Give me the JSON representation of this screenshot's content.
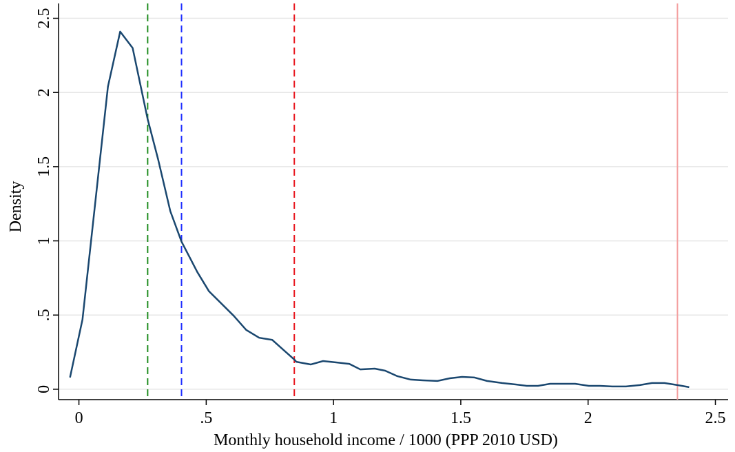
{
  "chart_data": {
    "type": "line",
    "x_label": "Monthly household income / 1000 (PPP 2010 USD)",
    "y_label": "Density",
    "xlim": [
      -0.08,
      2.55
    ],
    "ylim": [
      -0.07,
      2.6
    ],
    "xticks": [
      0,
      {
        "value": 0.5,
        "label": ".5"
      },
      1,
      1.5,
      2,
      2.5
    ],
    "yticks": [
      0,
      {
        "value": 0.5,
        "label": ".5"
      },
      1,
      1.5,
      2,
      2.5
    ],
    "grid": true,
    "series": [
      {
        "color": "#1a476f",
        "x": [
          -0.035,
          0.014,
          0.114,
          0.162,
          0.211,
          0.27,
          0.311,
          0.359,
          0.403,
          0.465,
          0.511,
          0.608,
          0.657,
          0.708,
          0.759,
          0.846,
          0.854,
          0.911,
          0.959,
          1.014,
          1.062,
          1.105,
          1.162,
          1.203,
          1.251,
          1.303,
          1.351,
          1.408,
          1.457,
          1.505,
          1.554,
          1.603,
          1.662,
          1.716,
          1.759,
          1.803,
          1.851,
          1.9,
          1.949,
          2.003,
          2.046,
          2.095,
          2.149,
          2.203,
          2.251,
          2.3,
          2.351,
          2.397
        ],
        "values": [
          0.079,
          0.47,
          2.04,
          2.41,
          2.3,
          1.82,
          1.55,
          1.2,
          0.995,
          0.79,
          0.66,
          0.495,
          0.4,
          0.347,
          0.333,
          0.2,
          0.185,
          0.167,
          0.19,
          0.18,
          0.171,
          0.134,
          0.139,
          0.125,
          0.088,
          0.065,
          0.06,
          0.056,
          0.074,
          0.083,
          0.079,
          0.056,
          0.042,
          0.032,
          0.023,
          0.023,
          0.037,
          0.037,
          0.037,
          0.023,
          0.023,
          0.019,
          0.019,
          0.028,
          0.042,
          0.042,
          0.028,
          0.014
        ]
      }
    ],
    "reference_lines": [
      {
        "value": 0.27,
        "color": "#1e8c1e",
        "style": "dashed"
      },
      {
        "value": 0.403,
        "color": "#1f2fff",
        "style": "dashed"
      },
      {
        "value": 0.846,
        "color": "#e8141c",
        "style": "dashed"
      },
      {
        "value": 2.351,
        "color": "#f4a0a0",
        "style": "solid"
      }
    ]
  }
}
